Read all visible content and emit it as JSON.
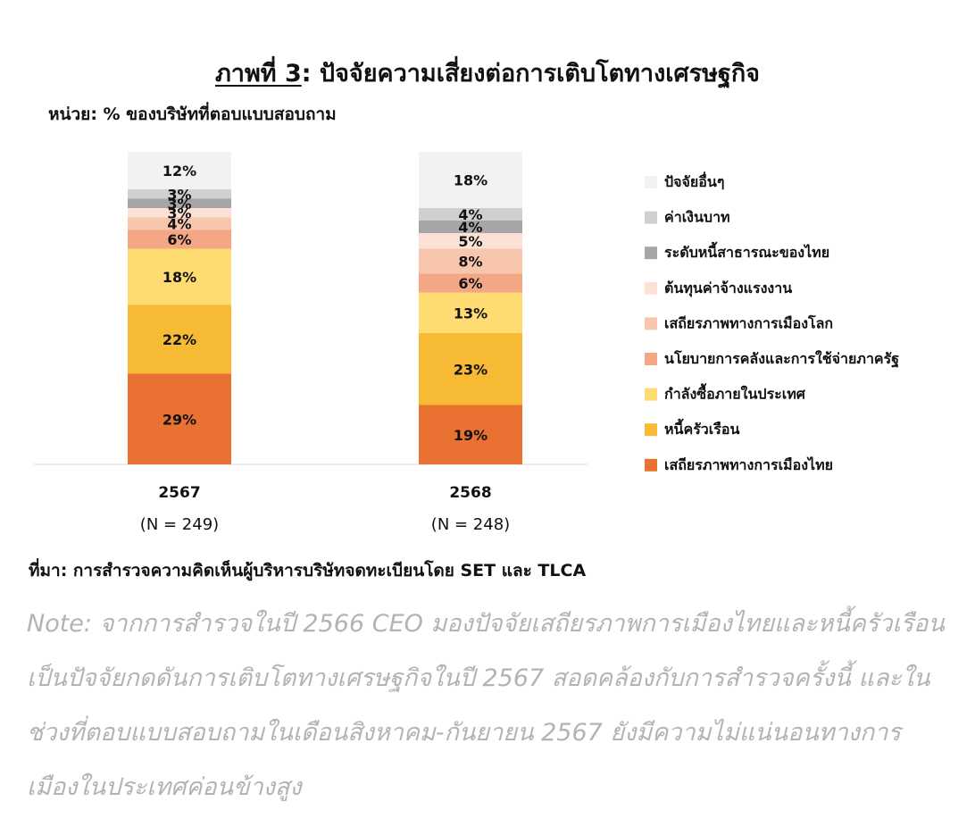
{
  "header": {
    "title_prefix": "ภาพที่ 3",
    "title_rest": ": ปัจจัยความเสี่ยงต่อการเติบโตทางเศรษฐกิจ",
    "unit": "หน่วย:  % ของบริษัทที่ตอบแบบสอบถาม"
  },
  "chart_data": {
    "type": "bar",
    "stacked": true,
    "categories": [
      "2567",
      "2568"
    ],
    "category_sublabels": [
      "(N = 249)",
      "(N = 248)"
    ],
    "legend_position": "right",
    "series": [
      {
        "name": "เสถียรภาพทางการเมืองไทย",
        "color": "#E97132",
        "values": [
          29,
          19
        ]
      },
      {
        "name": "หนี้ครัวเรือน",
        "color": "#F6BA34",
        "values": [
          22,
          23
        ]
      },
      {
        "name": "กำลังซื้อภายในประเทศ",
        "color": "#FFDC72",
        "values": [
          18,
          13
        ]
      },
      {
        "name": "นโยบายการคลังและการใช้จ่ายภาครัฐ",
        "color": "#F3A784",
        "values": [
          6,
          6
        ]
      },
      {
        "name": "เสถียรภาพทางการเมืองโลก",
        "color": "#F7C6AD",
        "values": [
          4,
          8
        ]
      },
      {
        "name": "ต้นทุนค่าจ้างแรงงาน",
        "color": "#FCE2D6",
        "values": [
          3,
          5
        ]
      },
      {
        "name": "ระดับหนี้สาธารณะของไทย",
        "color": "#A6A6A6",
        "values": [
          3,
          4
        ]
      },
      {
        "name": "ค่าเงินบาท",
        "color": "#D0D0D0",
        "values": [
          3,
          4
        ]
      },
      {
        "name": "ปัจจัยอื่นๆ",
        "color": "#F2F2F2",
        "values": [
          12,
          18
        ]
      }
    ]
  },
  "footer": {
    "source": "ที่มา: การสำรวจความคิดเห็นผู้บริหารบริษัทจดทะเบียนโดย SET และ TLCA",
    "note": "Note: จากการสำรวจในปี 2566 CEO มองปัจจัยเสถียรภาพการเมืองไทยและหนี้ครัวเรือนเป็นปัจจัยกดดันการเติบโตทางเศรษฐกิจในปี  2567 สอดคล้องกับการสำรวจครั้งนี้ และในช่วงที่ตอบแบบสอบถามในเดือนสิงหาคม-กันยายน 2567 ยังมีความไม่แน่นอนทางการเมืองในประเทศค่อนข้างสูง"
  }
}
